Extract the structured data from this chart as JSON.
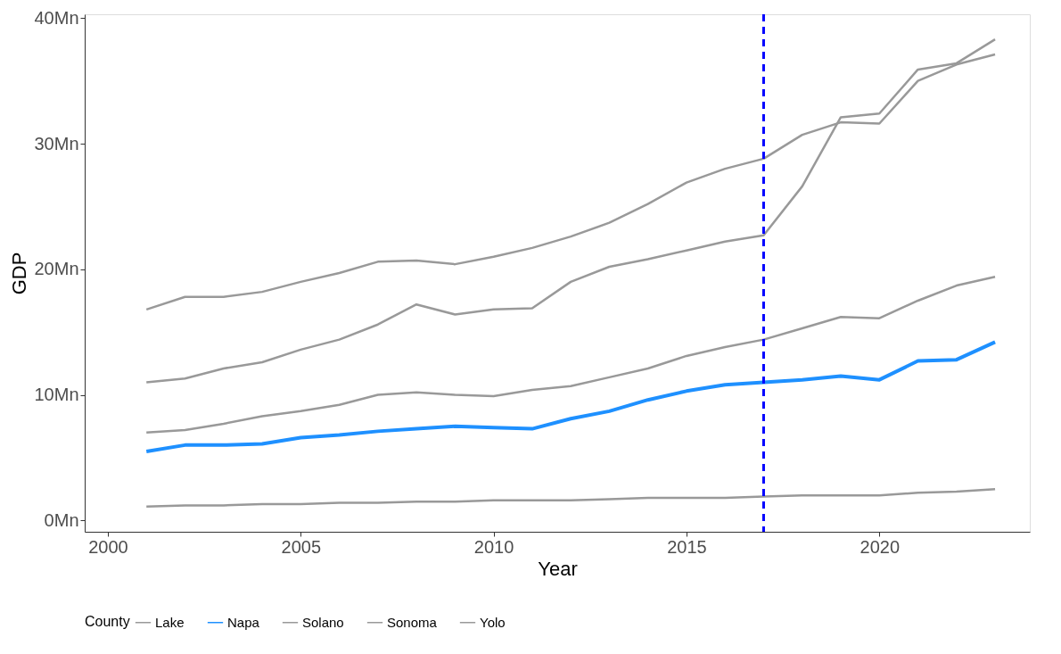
{
  "chart_data": {
    "type": "line",
    "xlabel": "Year",
    "ylabel": "GDP",
    "legend_title": "County",
    "legend": "bottom",
    "grid": false,
    "x": [
      2001,
      2002,
      2003,
      2004,
      2005,
      2006,
      2007,
      2008,
      2009,
      2010,
      2011,
      2012,
      2013,
      2014,
      2015,
      2016,
      2017,
      2018,
      2019,
      2020,
      2021,
      2022,
      2023
    ],
    "xlim": [
      1999.4,
      2023.9
    ],
    "xticks": [
      2000,
      2005,
      2010,
      2015,
      2020
    ],
    "ylim": [
      -0.9,
      40.3
    ],
    "yticks": [
      {
        "value": 0,
        "label": "0Mn"
      },
      {
        "value": 10,
        "label": "10Mn"
      },
      {
        "value": 20,
        "label": "20Mn"
      },
      {
        "value": 30,
        "label": "30Mn"
      },
      {
        "value": 40,
        "label": "40Mn"
      }
    ],
    "series": [
      {
        "name": "Lake",
        "color": "#999999",
        "values": [
          1.1,
          1.2,
          1.2,
          1.3,
          1.3,
          1.4,
          1.4,
          1.5,
          1.5,
          1.6,
          1.6,
          1.6,
          1.7,
          1.8,
          1.8,
          1.8,
          1.9,
          2.0,
          2.0,
          2.0,
          2.2,
          2.3,
          2.5
        ]
      },
      {
        "name": "Napa",
        "color": "#1e90ff",
        "values": [
          5.5,
          6.0,
          6.0,
          6.1,
          6.6,
          6.8,
          7.1,
          7.3,
          7.5,
          7.4,
          7.3,
          8.1,
          8.7,
          9.6,
          10.3,
          10.8,
          11.0,
          11.2,
          11.5,
          11.2,
          12.7,
          12.8,
          14.2
        ]
      },
      {
        "name": "Solano",
        "color": "#999999",
        "values": [
          11.0,
          11.3,
          12.1,
          12.6,
          13.6,
          14.4,
          15.6,
          17.2,
          16.4,
          16.8,
          16.9,
          19.0,
          20.2,
          20.8,
          21.5,
          22.2,
          22.7,
          26.6,
          32.1,
          32.4,
          35.9,
          36.4,
          38.3
        ]
      },
      {
        "name": "Sonoma",
        "color": "#999999",
        "values": [
          16.8,
          17.8,
          17.8,
          18.2,
          19.0,
          19.7,
          20.6,
          20.7,
          20.4,
          21.0,
          21.7,
          22.6,
          23.7,
          25.2,
          26.9,
          28.0,
          28.8,
          30.7,
          31.7,
          31.6,
          35.0,
          36.3,
          37.1
        ]
      },
      {
        "name": "Yolo",
        "color": "#999999",
        "values": [
          7.0,
          7.2,
          7.7,
          8.3,
          8.7,
          9.2,
          10.0,
          10.2,
          10.0,
          9.9,
          10.4,
          10.7,
          11.4,
          12.1,
          13.1,
          13.8,
          14.4,
          15.3,
          16.2,
          16.1,
          17.5,
          18.7,
          19.4
        ]
      }
    ],
    "ref_lines": [
      {
        "axis": "x",
        "value": 2017,
        "color": "#0000ff",
        "line_style": "dashed"
      }
    ]
  }
}
